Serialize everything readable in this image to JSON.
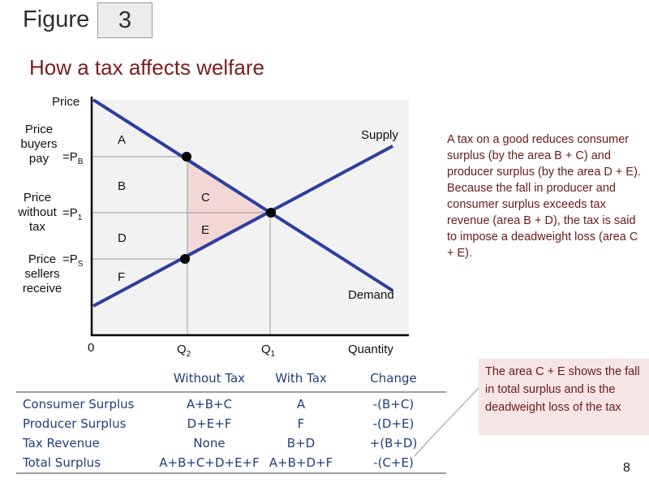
{
  "header": {
    "figure_word": "Figure",
    "figure_number": "3",
    "title": "How a tax affects welfare"
  },
  "axes": {
    "y_title": "Price",
    "x_title": "Quantity",
    "origin": "0"
  },
  "curves": {
    "supply": "Supply",
    "demand": "Demand"
  },
  "price_labels": {
    "buyers": {
      "text": [
        "Price",
        "buyers",
        "pay"
      ],
      "symbol": "=P",
      "sub": "B"
    },
    "without": {
      "text": [
        "Price",
        "without",
        "tax"
      ],
      "symbol": "=P",
      "sub": "1"
    },
    "sellers": {
      "text": [
        "Price",
        "sellers",
        "receive"
      ],
      "symbol": "=P",
      "sub": "S"
    }
  },
  "quantity_labels": {
    "q2": {
      "symbol": "Q",
      "sub": "2"
    },
    "q1": {
      "symbol": "Q",
      "sub": "1"
    }
  },
  "regions": [
    "A",
    "B",
    "C",
    "D",
    "E",
    "F"
  ],
  "explanation": "A tax on a good reduces consumer surplus (by the area B + C) and producer surplus (by the area D + E). Because the fall in producer and consumer surplus exceeds tax revenue (area B + D), the tax is said to impose a deadweight loss (area C + E).",
  "callout": "The area C + E shows the fall in total surplus and is the deadweight loss of the tax",
  "table": {
    "headers": [
      "Without Tax",
      "With Tax",
      "Change"
    ],
    "rows": [
      {
        "label": "Consumer Surplus",
        "without": "A+B+C",
        "with": "A",
        "change": "-(B+C)"
      },
      {
        "label": "Producer Surplus",
        "without": "D+E+F",
        "with": "F",
        "change": "-(D+E)"
      },
      {
        "label": "Tax Revenue",
        "without": "None",
        "with": "B+D",
        "change": "+(B+D)"
      },
      {
        "label": "Total Surplus",
        "without": "A+B+C+D+E+F",
        "with": "A+B+D+F",
        "change": "-(C+E)"
      }
    ]
  },
  "page_number": "8",
  "colors": {
    "curve": "#2b3f9e",
    "deadweight_fill": "#f3d6d6",
    "title": "#7a1d1d",
    "table_text": "#1f3f7a",
    "callout_bg": "#f5e5e5"
  }
}
